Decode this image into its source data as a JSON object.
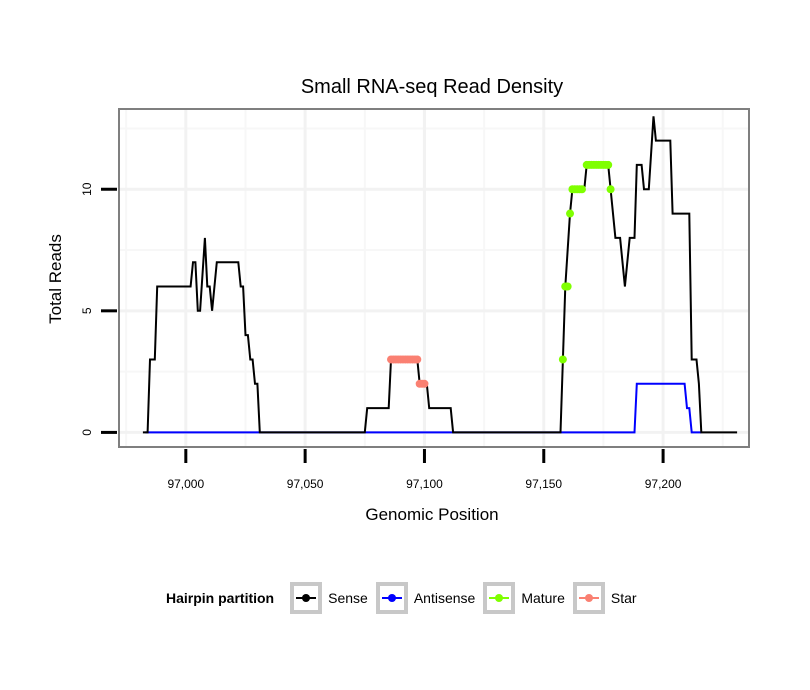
{
  "chart_data": {
    "type": "line",
    "title": "Small RNA-seq Read Density",
    "xlabel": "Genomic Position",
    "ylabel": "Total Reads",
    "xlim": [
      96972,
      97236
    ],
    "ylim": [
      -0.6,
      13.3
    ],
    "x_ticks": [
      97000,
      97050,
      97100,
      97150,
      97200
    ],
    "x_tick_labels": [
      "97,000",
      "97,050",
      "97,100",
      "97,150",
      "97,200"
    ],
    "y_ticks": [
      0,
      5,
      10
    ],
    "y_tick_labels": [
      "0",
      "5",
      "10"
    ],
    "grid": true,
    "legend": {
      "title": "Hairpin partition",
      "placement": "bottom",
      "entries": [
        {
          "label": "Sense",
          "color": "#000000"
        },
        {
          "label": "Antisense",
          "color": "#0000ff"
        },
        {
          "label": "Mature",
          "color": "#7fff00"
        },
        {
          "label": "Star",
          "color": "#fa8072"
        }
      ]
    },
    "series": [
      {
        "name": "Sense",
        "color": "#000000",
        "style": "line",
        "points": [
          [
            96982,
            0
          ],
          [
            96984,
            0
          ],
          [
            96985,
            3
          ],
          [
            96987,
            3
          ],
          [
            96988,
            6
          ],
          [
            97002,
            6
          ],
          [
            97003,
            7
          ],
          [
            97004,
            7
          ],
          [
            97005,
            5
          ],
          [
            97006,
            5
          ],
          [
            97008,
            8
          ],
          [
            97009,
            6
          ],
          [
            97010,
            6
          ],
          [
            97011,
            5
          ],
          [
            97013,
            7
          ],
          [
            97022,
            7
          ],
          [
            97023,
            6
          ],
          [
            97024,
            6
          ],
          [
            97025,
            4
          ],
          [
            97026,
            4
          ],
          [
            97027,
            3
          ],
          [
            97028,
            3
          ],
          [
            97029,
            2
          ],
          [
            97030,
            2
          ],
          [
            97031,
            0
          ],
          [
            97075,
            0
          ],
          [
            97076,
            1
          ],
          [
            97085,
            1
          ],
          [
            97086,
            3
          ],
          [
            97097,
            3
          ],
          [
            97098,
            2
          ],
          [
            97101,
            2
          ],
          [
            97102,
            1
          ],
          [
            97111,
            1
          ],
          [
            97112,
            0
          ],
          [
            97157,
            0
          ],
          [
            97158,
            3
          ],
          [
            97159,
            6
          ],
          [
            97161,
            9
          ],
          [
            97162,
            10
          ],
          [
            97167,
            10
          ],
          [
            97168,
            11
          ],
          [
            97177,
            11
          ],
          [
            97178,
            10
          ],
          [
            97180,
            8
          ],
          [
            97182,
            8
          ],
          [
            97184,
            6
          ],
          [
            97186,
            8
          ],
          [
            97188,
            8
          ],
          [
            97189,
            11
          ],
          [
            97191,
            11
          ],
          [
            97192,
            10
          ],
          [
            97194,
            10
          ],
          [
            97196,
            13
          ],
          [
            97197,
            12
          ],
          [
            97203,
            12
          ],
          [
            97204,
            9
          ],
          [
            97211,
            9
          ],
          [
            97212,
            3
          ],
          [
            97214,
            3
          ],
          [
            97215,
            2
          ],
          [
            97216,
            0
          ],
          [
            97231,
            0
          ]
        ]
      },
      {
        "name": "Antisense",
        "color": "#0000ff",
        "style": "line",
        "points": [
          [
            96983,
            0
          ],
          [
            97188,
            0
          ],
          [
            97189,
            2
          ],
          [
            97209,
            2
          ],
          [
            97210,
            1
          ],
          [
            97211,
            1
          ],
          [
            97212,
            0
          ],
          [
            97216,
            0
          ]
        ]
      },
      {
        "name": "Mature",
        "color": "#7fff00",
        "style": "points",
        "points": [
          [
            97158,
            3
          ],
          [
            97159,
            6
          ],
          [
            97160,
            6
          ],
          [
            97161,
            9
          ],
          [
            97162,
            10
          ],
          [
            97163,
            10
          ],
          [
            97164,
            10
          ],
          [
            97165,
            10
          ],
          [
            97166,
            10
          ],
          [
            97168,
            11
          ],
          [
            97169,
            11
          ],
          [
            97170,
            11
          ],
          [
            97171,
            11
          ],
          [
            97172,
            11
          ],
          [
            97173,
            11
          ],
          [
            97174,
            11
          ],
          [
            97175,
            11
          ],
          [
            97176,
            11
          ],
          [
            97177,
            11
          ],
          [
            97178,
            10
          ]
        ]
      },
      {
        "name": "Star",
        "color": "#fa8072",
        "style": "points",
        "points": [
          [
            97086,
            3
          ],
          [
            97087,
            3
          ],
          [
            97088,
            3
          ],
          [
            97089,
            3
          ],
          [
            97090,
            3
          ],
          [
            97091,
            3
          ],
          [
            97092,
            3
          ],
          [
            97093,
            3
          ],
          [
            97094,
            3
          ],
          [
            97095,
            3
          ],
          [
            97096,
            3
          ],
          [
            97097,
            3
          ],
          [
            97098,
            2
          ],
          [
            97099,
            2
          ],
          [
            97100,
            2
          ]
        ]
      }
    ]
  }
}
